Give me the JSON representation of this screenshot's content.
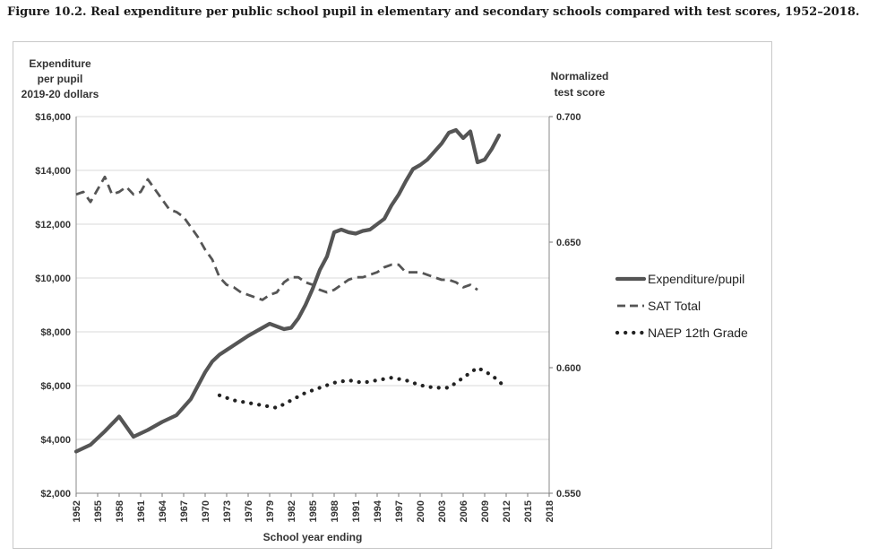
{
  "figure_title": "Figure 10.2. Real expenditure per public school pupil in elementary and secondary schools compared with test scores, 1952–2018.",
  "chart_data": {
    "type": "line",
    "title": "Figure 10.2. Real expenditure per public school pupil in elementary and secondary schools compared with test scores, 1952–2018.",
    "xlabel": "School year ending",
    "ylabel_left": [
      "Expenditure",
      "per pupil",
      "2019-20 dollars"
    ],
    "ylabel_right": [
      "Normalized",
      "test score"
    ],
    "xlim": [
      1952,
      2018
    ],
    "ylim_left": [
      2000,
      16000
    ],
    "ylim_right": [
      0.55,
      0.7
    ],
    "x_ticks": [
      "1952",
      "1955",
      "1958",
      "1961",
      "1964",
      "1967",
      "1970",
      "1973",
      "1976",
      "1979",
      "1982",
      "1985",
      "1988",
      "1991",
      "1994",
      "1997",
      "2000",
      "2003",
      "2006",
      "2009",
      "2012",
      "2015",
      "2018"
    ],
    "y_ticks_left": [
      "$2,000",
      "$4,000",
      "$6,000",
      "$8,000",
      "$10,000",
      "$12,000",
      "$14,000",
      "$16,000"
    ],
    "y_ticks_right": [
      "0.550",
      "0.600",
      "0.650",
      "0.700"
    ],
    "grid": true,
    "legend_position": "right",
    "series": [
      {
        "name": "Expenditure/pupil",
        "axis": "left",
        "style": "solid",
        "color": "#555555",
        "points": [
          [
            1952,
            3550
          ],
          [
            1954,
            3800
          ],
          [
            1956,
            4300
          ],
          [
            1958,
            4850
          ],
          [
            1960,
            4100
          ],
          [
            1962,
            4350
          ],
          [
            1964,
            4650
          ],
          [
            1966,
            4900
          ],
          [
            1968,
            5500
          ],
          [
            1970,
            6500
          ],
          [
            1971,
            6900
          ],
          [
            1972,
            7150
          ],
          [
            1974,
            7500
          ],
          [
            1976,
            7850
          ],
          [
            1978,
            8150
          ],
          [
            1979,
            8300
          ],
          [
            1980,
            8200
          ],
          [
            1981,
            8100
          ],
          [
            1982,
            8150
          ],
          [
            1983,
            8500
          ],
          [
            1984,
            9000
          ],
          [
            1985,
            9600
          ],
          [
            1986,
            10300
          ],
          [
            1987,
            10800
          ],
          [
            1988,
            11700
          ],
          [
            1989,
            11800
          ],
          [
            1990,
            11700
          ],
          [
            1991,
            11650
          ],
          [
            1992,
            11750
          ],
          [
            1993,
            11800
          ],
          [
            1994,
            12000
          ],
          [
            1995,
            12200
          ],
          [
            1996,
            12700
          ],
          [
            1997,
            13100
          ],
          [
            1998,
            13600
          ],
          [
            1999,
            14050
          ],
          [
            2000,
            14200
          ],
          [
            2001,
            14400
          ],
          [
            2002,
            14700
          ],
          [
            2003,
            15000
          ],
          [
            2004,
            15400
          ],
          [
            2005,
            15500
          ],
          [
            2006,
            15200
          ],
          [
            2007,
            15450
          ],
          [
            2008,
            14300
          ],
          [
            2009,
            14400
          ],
          [
            2010,
            14800
          ],
          [
            2011,
            15300
          ]
        ]
      },
      {
        "name": "SAT Total",
        "axis": "right",
        "style": "dashed",
        "color": "#555555",
        "points": [
          [
            1952,
            0.669
          ],
          [
            1953,
            0.67
          ],
          [
            1954,
            0.666
          ],
          [
            1955,
            0.671
          ],
          [
            1956,
            0.676
          ],
          [
            1957,
            0.669
          ],
          [
            1958,
            0.67
          ],
          [
            1959,
            0.672
          ],
          [
            1960,
            0.669
          ],
          [
            1961,
            0.67
          ],
          [
            1962,
            0.675
          ],
          [
            1963,
            0.671
          ],
          [
            1964,
            0.667
          ],
          [
            1965,
            0.663
          ],
          [
            1966,
            0.662
          ],
          [
            1967,
            0.66
          ],
          [
            1968,
            0.656
          ],
          [
            1969,
            0.652
          ],
          [
            1970,
            0.647
          ],
          [
            1971,
            0.643
          ],
          [
            1972,
            0.636
          ],
          [
            1973,
            0.633
          ],
          [
            1974,
            0.632
          ],
          [
            1975,
            0.63
          ],
          [
            1976,
            0.629
          ],
          [
            1977,
            0.628
          ],
          [
            1978,
            0.627
          ],
          [
            1979,
            0.629
          ],
          [
            1980,
            0.63
          ],
          [
            1981,
            0.634
          ],
          [
            1982,
            0.636
          ],
          [
            1983,
            0.636
          ],
          [
            1984,
            0.634
          ],
          [
            1985,
            0.633
          ],
          [
            1986,
            0.631
          ],
          [
            1987,
            0.63
          ],
          [
            1988,
            0.631
          ],
          [
            1989,
            0.633
          ],
          [
            1990,
            0.635
          ],
          [
            1991,
            0.636
          ],
          [
            1992,
            0.636
          ],
          [
            1993,
            0.637
          ],
          [
            1994,
            0.638
          ],
          [
            1995,
            0.64
          ],
          [
            1996,
            0.641
          ],
          [
            1997,
            0.641
          ],
          [
            1998,
            0.638
          ],
          [
            1999,
            0.638
          ],
          [
            2000,
            0.638
          ],
          [
            2001,
            0.637
          ],
          [
            2002,
            0.636
          ],
          [
            2003,
            0.635
          ],
          [
            2004,
            0.635
          ],
          [
            2005,
            0.634
          ],
          [
            2006,
            0.632
          ],
          [
            2007,
            0.633
          ],
          [
            2008,
            0.631
          ]
        ]
      },
      {
        "name": "NAEP 12th Grade",
        "axis": "right",
        "style": "dotted",
        "color": "#222222",
        "points": [
          [
            1972,
            0.589
          ],
          [
            1974,
            0.587
          ],
          [
            1976,
            0.586
          ],
          [
            1978,
            0.585
          ],
          [
            1980,
            0.584
          ],
          [
            1982,
            0.587
          ],
          [
            1984,
            0.59
          ],
          [
            1986,
            0.592
          ],
          [
            1988,
            0.594
          ],
          [
            1990,
            0.595
          ],
          [
            1992,
            0.594
          ],
          [
            1994,
            0.595
          ],
          [
            1996,
            0.596
          ],
          [
            1998,
            0.595
          ],
          [
            2000,
            0.593
          ],
          [
            2002,
            0.592
          ],
          [
            2004,
            0.592
          ],
          [
            2006,
            0.596
          ],
          [
            2008,
            0.6
          ],
          [
            2010,
            0.597
          ],
          [
            2012,
            0.592
          ]
        ]
      }
    ]
  }
}
